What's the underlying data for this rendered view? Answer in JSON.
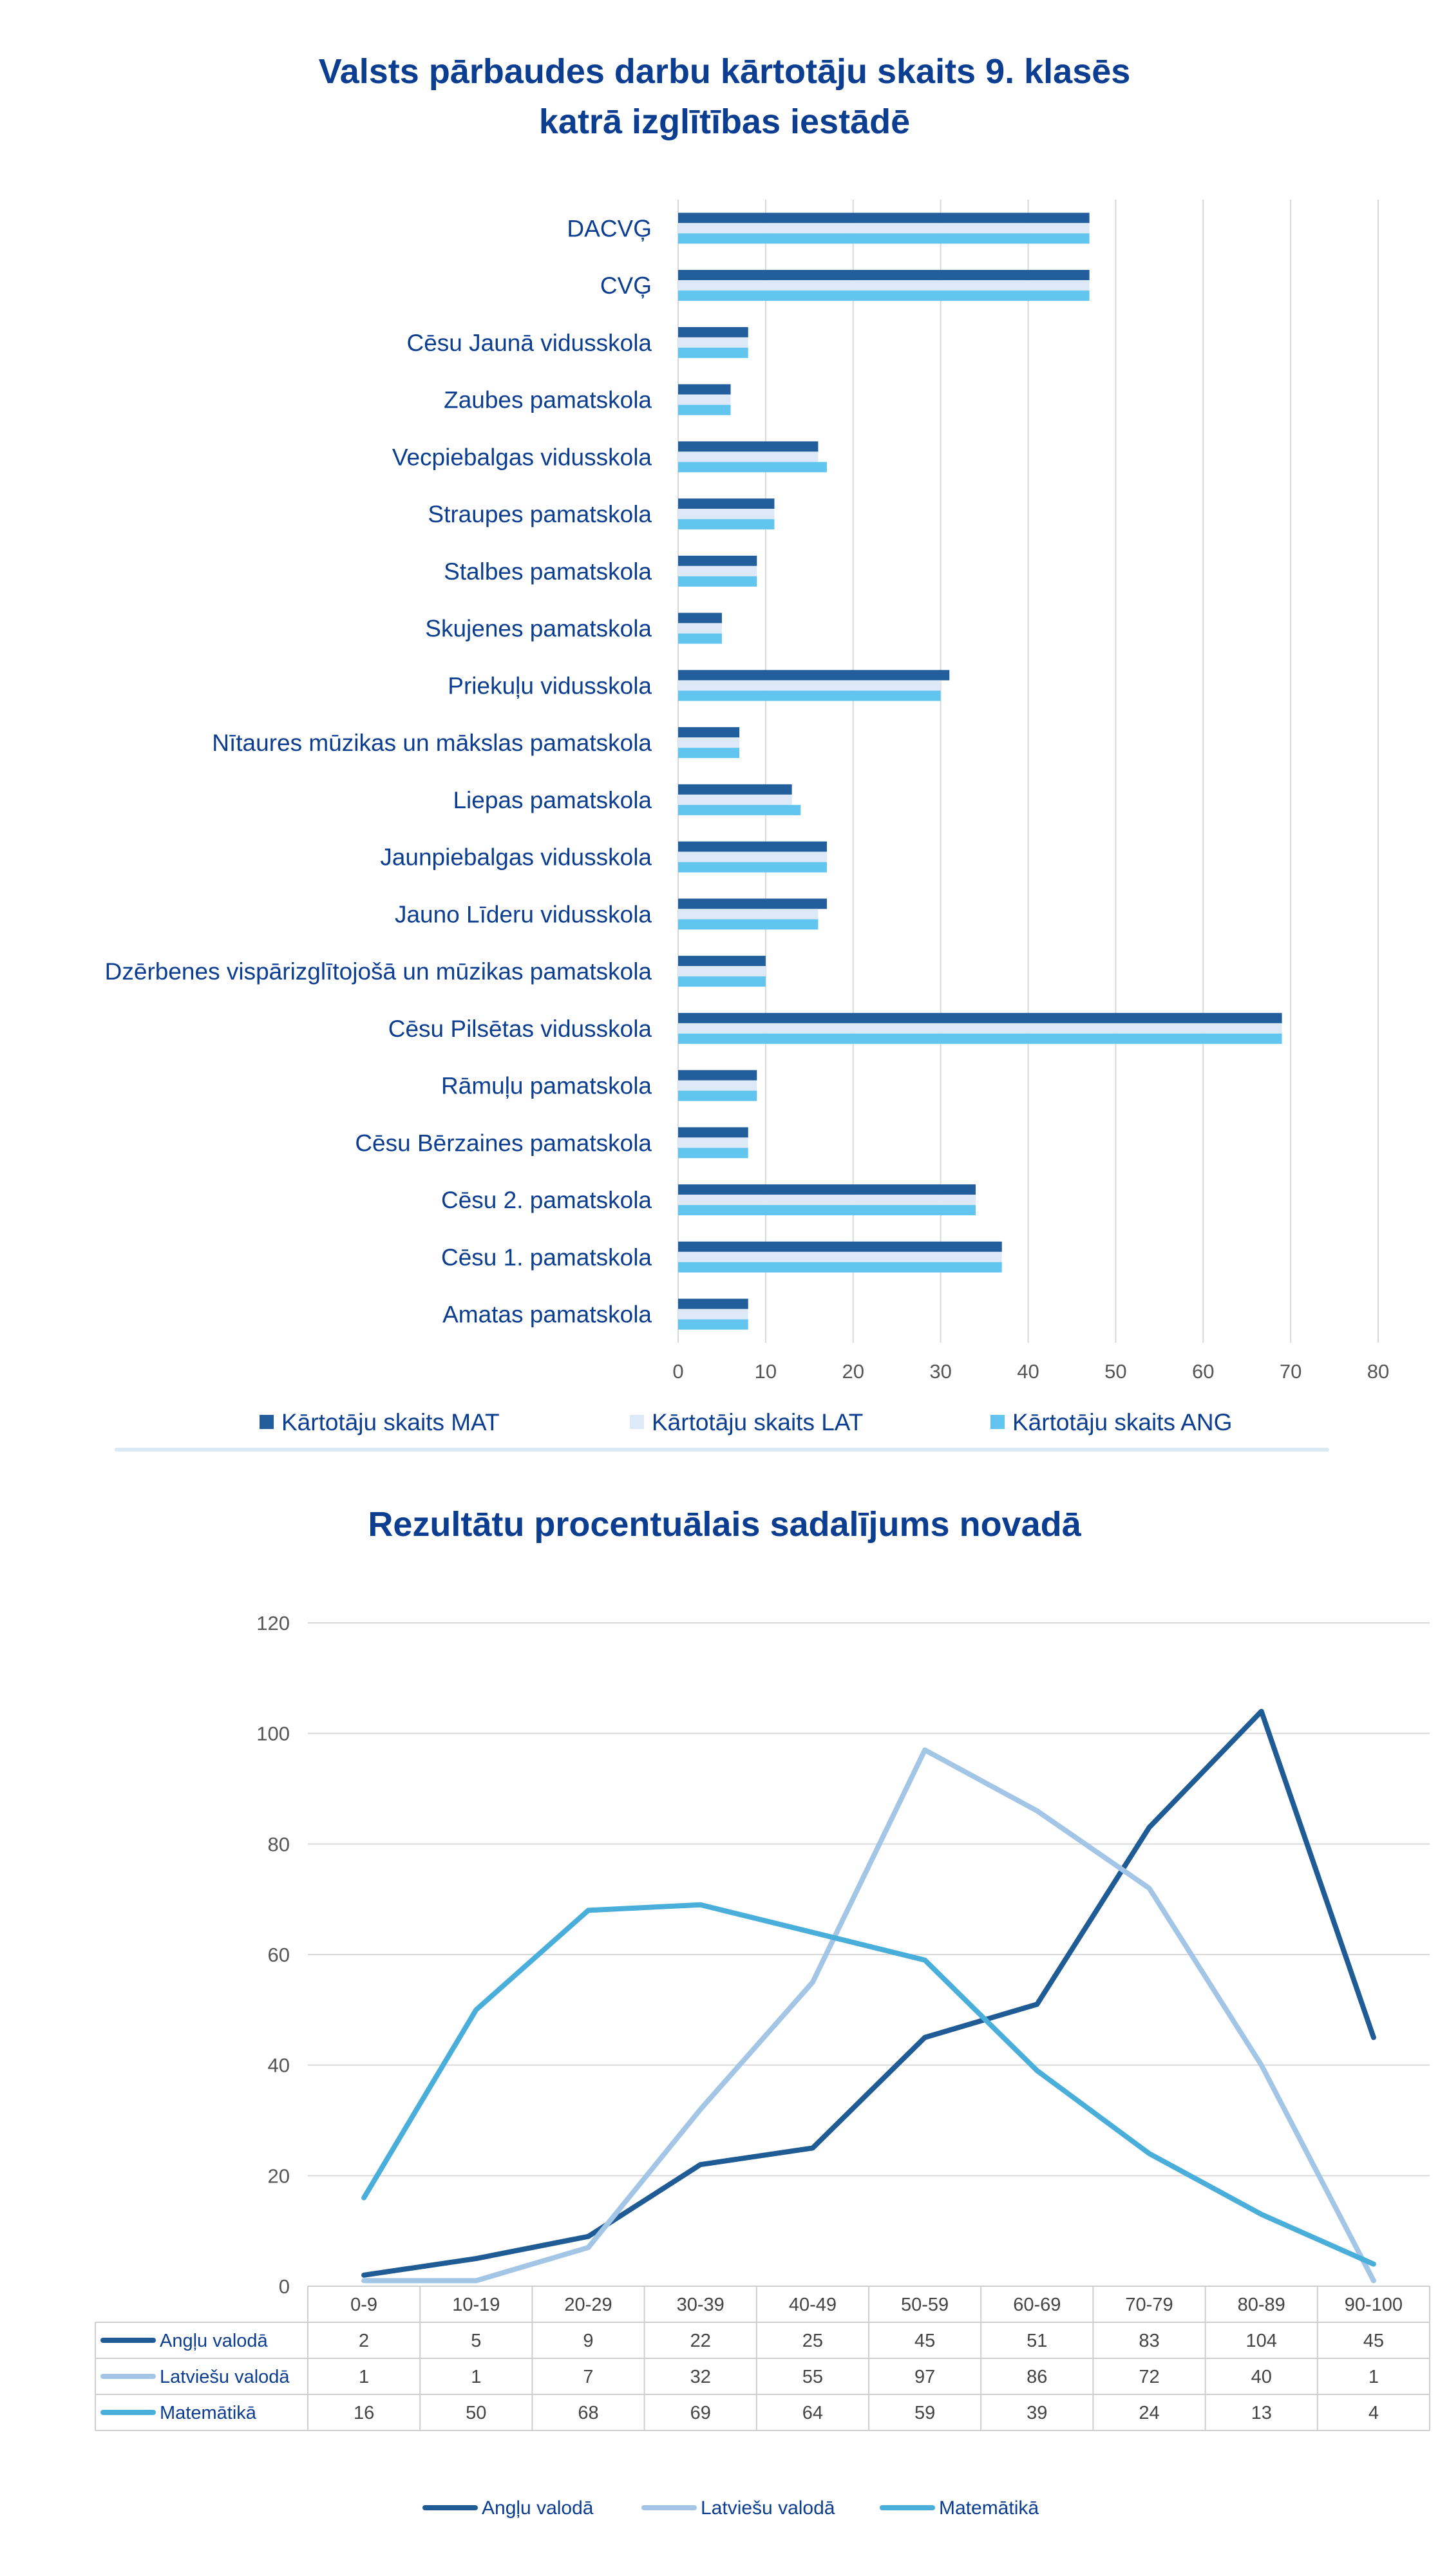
{
  "title1": "Valsts pārbaudes darbu kārtotāju skaits 9. klasēs\nkatrā izglītības iestādē",
  "title2": "Rezultātu procentuālais sadalījums novadā",
  "chart_data": [
    {
      "type": "bar",
      "orientation": "horizontal",
      "title": "Valsts pārbaudes darbu kārtotāju skaits 9. klasēs katrā izglītības iestādē",
      "categories": [
        "DACVĢ",
        "CVĢ",
        "Cēsu Jaunā vidusskola",
        "Zaubes pamatskola",
        "Vecpiebalgas vidusskola",
        "Straupes pamatskola",
        "Stalbes pamatskola",
        "Skujenes pamatskola",
        "Priekuļu vidusskola",
        "Nītaures mūzikas un mākslas pamatskola",
        "Liepas pamatskola",
        "Jaunpiebalgas vidusskola",
        "Jauno Līderu vidusskola",
        "Dzērbenes vispārizglītojošā un mūzikas pamatskola",
        "Cēsu Pilsētas vidusskola",
        "Rāmuļu pamatskola",
        "Cēsu Bērzaines pamatskola",
        "Cēsu 2. pamatskola",
        "Cēsu 1. pamatskola",
        "Amatas pamatskola"
      ],
      "series": [
        {
          "name": "Kārtotāju skaits MAT",
          "color": "#215e9b",
          "values": [
            47,
            47,
            8,
            6,
            16,
            11,
            9,
            5,
            31,
            7,
            13,
            17,
            17,
            10,
            69,
            9,
            8,
            34,
            37,
            8
          ]
        },
        {
          "name": "Kārtotāju skaits LAT",
          "color": "#dde9f6",
          "values": [
            47,
            47,
            8,
            6,
            16,
            11,
            9,
            5,
            30,
            7,
            13,
            17,
            16,
            10,
            69,
            9,
            8,
            34,
            37,
            8
          ]
        },
        {
          "name": "Kārtotāju skaits ANG",
          "color": "#62c5f0",
          "values": [
            47,
            47,
            8,
            6,
            17,
            11,
            9,
            5,
            30,
            7,
            14,
            17,
            16,
            10,
            69,
            9,
            8,
            34,
            37,
            8
          ]
        }
      ],
      "xlim": [
        0,
        80
      ],
      "xticks": [
        "0",
        "10",
        "20",
        "30",
        "40",
        "50",
        "60",
        "70",
        "80"
      ],
      "grid": true,
      "legend": "bottom"
    },
    {
      "type": "line",
      "title": "Rezultātu procentuālais sadalījums novadā",
      "categories": [
        "0-9",
        "10-19",
        "20-29",
        "30-39",
        "40-49",
        "50-59",
        "60-69",
        "70-79",
        "80-89",
        "90-100"
      ],
      "series": [
        {
          "name": "Angļu valodā",
          "color": "#1f5b95",
          "values": [
            2,
            5,
            9,
            22,
            25,
            45,
            51,
            83,
            104,
            45
          ]
        },
        {
          "name": "Latviešu valodā",
          "color": "#a3c6e6",
          "values": [
            1,
            1,
            7,
            32,
            55,
            97,
            86,
            72,
            40,
            1
          ]
        },
        {
          "name": "Matemātikā",
          "color": "#4aaedb",
          "values": [
            16,
            50,
            68,
            69,
            64,
            59,
            39,
            24,
            13,
            4
          ]
        }
      ],
      "ylim": [
        0,
        120
      ],
      "yticks": [
        "0",
        "20",
        "40",
        "60",
        "80",
        "100",
        "120"
      ],
      "grid": true,
      "data_table": true,
      "legend": "bottom"
    }
  ]
}
